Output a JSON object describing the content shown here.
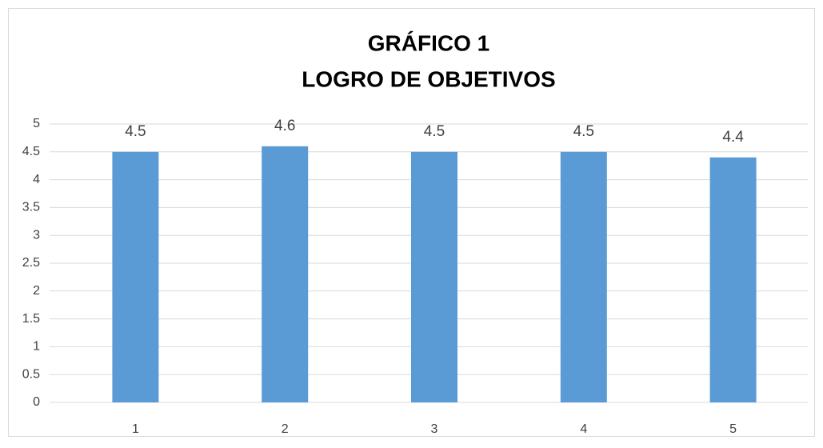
{
  "chart_data": {
    "type": "bar",
    "title": [
      "GRÁFICO 1",
      "LOGRO DE OBJETIVOS"
    ],
    "categories": [
      "1",
      "2",
      "3",
      "4",
      "5"
    ],
    "values": [
      4.5,
      4.6,
      4.5,
      4.5,
      4.4
    ],
    "color": "#5b9bd5",
    "ylim": [
      0,
      5
    ],
    "yticks": [
      0,
      0.5,
      1,
      1.5,
      2,
      2.5,
      3,
      3.5,
      4,
      4.5,
      5
    ],
    "grid": true,
    "data_labels": true
  }
}
